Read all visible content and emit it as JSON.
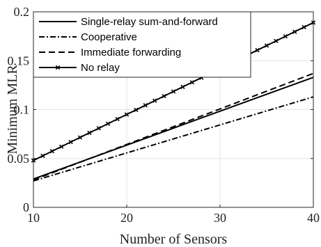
{
  "chart_data": {
    "type": "line",
    "xlabel": "Number of Sensors",
    "ylabel": "Minimum MLR",
    "xlim": [
      10,
      40
    ],
    "ylim": [
      0,
      0.2
    ],
    "xticks": [
      10,
      20,
      30,
      40
    ],
    "xtick_labels": [
      "10",
      "20",
      "30",
      "40"
    ],
    "yticks": [
      0,
      0.05,
      0.1,
      0.15,
      0.2
    ],
    "ytick_labels": [
      "0",
      "0.05",
      "0.1",
      "0.15",
      "0.2"
    ],
    "grid": true,
    "legend_position": "top-left",
    "series": [
      {
        "name": "Single-relay sum-and-forward",
        "style": "solid",
        "x": [
          10,
          40
        ],
        "values": [
          0.029,
          0.133
        ]
      },
      {
        "name": "Cooperative",
        "style": "dashdot",
        "x": [
          10,
          40
        ],
        "values": [
          0.027,
          0.113
        ]
      },
      {
        "name": "Immediate forwarding",
        "style": "dashed",
        "x": [
          10,
          40
        ],
        "values": [
          0.028,
          0.137
        ]
      },
      {
        "name": "No relay",
        "style": "solid-x-marker",
        "x": [
          10,
          11,
          12,
          13,
          14,
          15,
          16,
          17,
          18,
          19,
          20,
          21,
          22,
          23,
          24,
          25,
          26,
          27,
          28,
          29,
          30,
          31,
          32,
          33,
          34,
          35,
          36,
          37,
          38,
          39,
          40
        ],
        "values": [
          0.048,
          0.0527,
          0.0574,
          0.0621,
          0.0668,
          0.0715,
          0.0762,
          0.0809,
          0.0856,
          0.0903,
          0.095,
          0.0997,
          0.1044,
          0.1091,
          0.1138,
          0.1185,
          0.1232,
          0.1279,
          0.1326,
          0.1373,
          0.142,
          0.1467,
          0.1514,
          0.1561,
          0.1608,
          0.1655,
          0.1702,
          0.1749,
          0.1796,
          0.1843,
          0.189
        ]
      }
    ]
  }
}
